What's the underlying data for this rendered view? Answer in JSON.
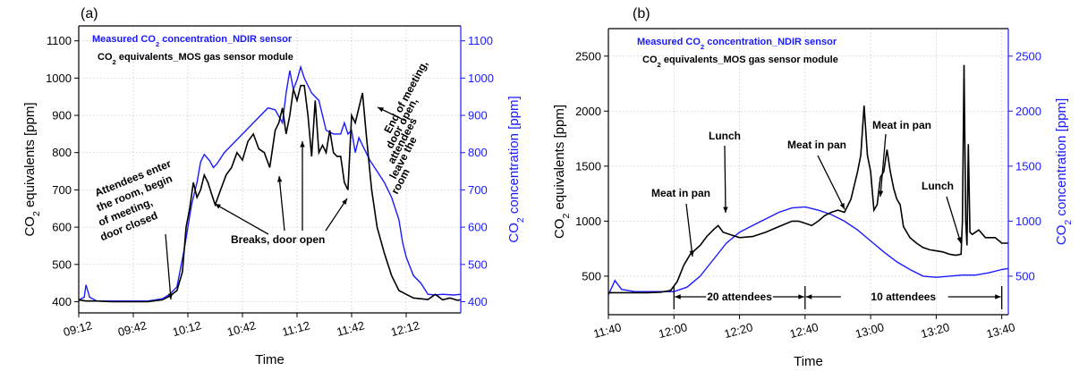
{
  "chart_data": [
    {
      "id": "a",
      "type": "line",
      "panel_label": "(a)",
      "xlabel": "Time",
      "ylabel": "CO2 equivalents [ppm]",
      "y2label": "CO2 concentration [ppm]",
      "grid": true,
      "legend_position": "top-left",
      "x_unit": "minutes of day",
      "xlim": [
        552,
        762
      ],
      "ylim": [
        370,
        1140
      ],
      "y2lim": [
        370,
        1140
      ],
      "x_ticks": [
        552,
        582,
        612,
        642,
        672,
        702,
        732
      ],
      "x_tick_labels": [
        "09:12",
        "09:42",
        "10:12",
        "10:42",
        "11:12",
        "11:42",
        "12:12"
      ],
      "y_ticks": [
        400,
        500,
        600,
        700,
        800,
        900,
        1000,
        1100
      ],
      "y_tick_labels": [
        "400",
        "500",
        "600",
        "700",
        "800",
        "900",
        "1000",
        "1100"
      ],
      "y2_ticks": [
        400,
        500,
        600,
        700,
        800,
        900,
        1000,
        1100
      ],
      "y2_tick_labels": [
        "400",
        "500",
        "600",
        "700",
        "800",
        "900",
        "1000",
        "1100"
      ],
      "series": [
        {
          "name": "Measured CO2 concentration_NDIR sensor",
          "color": "#1a1aff",
          "axis": "right",
          "x": [
            552,
            555,
            556,
            558,
            562,
            570,
            580,
            590,
            598,
            602,
            606,
            610,
            614,
            617,
            619,
            621,
            624,
            626,
            628,
            632,
            636,
            640,
            644,
            648,
            652,
            656,
            660,
            664,
            666,
            668,
            670,
            672,
            674,
            676,
            680,
            684,
            688,
            692,
            696,
            698,
            700,
            702,
            704,
            706,
            708,
            712,
            716,
            720,
            724,
            728,
            730,
            732,
            736,
            740,
            744,
            748,
            752,
            758,
            762
          ],
          "y": [
            405,
            412,
            445,
            412,
            402,
            402,
            402,
            402,
            408,
            420,
            440,
            540,
            660,
            720,
            775,
            795,
            778,
            760,
            770,
            800,
            820,
            840,
            860,
            880,
            900,
            920,
            915,
            880,
            960,
            1020,
            970,
            995,
            1030,
            1000,
            960,
            940,
            860,
            850,
            850,
            880,
            850,
            860,
            800,
            840,
            820,
            780,
            750,
            720,
            680,
            620,
            560,
            520,
            470,
            450,
            420,
            418,
            420,
            418,
            420
          ]
        },
        {
          "name": "CO2 equivalents_MOS gas sensor module",
          "color": "#000000",
          "axis": "left",
          "x": [
            552,
            556,
            562,
            570,
            580,
            590,
            598,
            602,
            606,
            609,
            611,
            613,
            615,
            617,
            619,
            621,
            623,
            625,
            627,
            630,
            633,
            636,
            639,
            642,
            645,
            648,
            651,
            654,
            657,
            660,
            662,
            664,
            666,
            668,
            670,
            672,
            674,
            676,
            678,
            680,
            682,
            684,
            686,
            688,
            690,
            692,
            694,
            696,
            698,
            700,
            702,
            704,
            706,
            708,
            710,
            713,
            716,
            720,
            724,
            728,
            732,
            736,
            740,
            744,
            748,
            752,
            756,
            760,
            762
          ],
          "y": [
            405,
            402,
            402,
            400,
            400,
            400,
            405,
            415,
            430,
            480,
            600,
            650,
            720,
            680,
            700,
            740,
            720,
            690,
            660,
            700,
            740,
            760,
            800,
            780,
            830,
            850,
            810,
            800,
            760,
            860,
            880,
            920,
            850,
            900,
            970,
            940,
            980,
            980,
            900,
            790,
            940,
            800,
            820,
            800,
            860,
            800,
            790,
            790,
            720,
            700,
            900,
            880,
            920,
            960,
            850,
            700,
            600,
            530,
            470,
            430,
            420,
            410,
            408,
            406,
            420,
            405,
            410,
            404,
            405
          ]
        }
      ],
      "annotations": [
        {
          "lines": [
            "Attendees enter",
            "the room, begin",
            "of meeting,",
            "door closed"
          ]
        },
        {
          "lines": [
            "Breaks, door open"
          ]
        },
        {
          "lines": [
            "End of meeting,",
            "door open,",
            "attendees",
            "leave the",
            "room"
          ]
        }
      ]
    },
    {
      "id": "b",
      "type": "line",
      "panel_label": "(b)",
      "xlabel": "Time",
      "ylabel": "CO2 equivalents [ppm]",
      "y2label": "CO2 concentration [ppm]",
      "grid": true,
      "legend_position": "top-left",
      "x_unit": "minutes of day",
      "xlim": [
        700,
        822
      ],
      "ylim": [
        150,
        2750
      ],
      "y2lim": [
        150,
        2750
      ],
      "x_ticks": [
        700,
        720,
        740,
        760,
        780,
        800,
        820
      ],
      "x_tick_labels": [
        "11:40",
        "12:00",
        "12:20",
        "12:40",
        "13:00",
        "13:20",
        "13:40"
      ],
      "y_ticks": [
        500,
        1000,
        1500,
        2000,
        2500
      ],
      "y_tick_labels": [
        "500",
        "1000",
        "1500",
        "2000",
        "2500"
      ],
      "y2_ticks": [
        500,
        1000,
        1500,
        2000,
        2500
      ],
      "y2_tick_labels": [
        "500",
        "1000",
        "1500",
        "2000",
        "2500"
      ],
      "series": [
        {
          "name": "Measured CO2 concentration_NDIR sensor",
          "color": "#1a1aff",
          "axis": "right",
          "x": [
            700,
            702,
            704,
            708,
            712,
            716,
            720,
            724,
            728,
            732,
            736,
            740,
            744,
            748,
            752,
            756,
            760,
            764,
            768,
            772,
            776,
            780,
            784,
            788,
            792,
            796,
            800,
            804,
            808,
            812,
            816,
            820,
            822
          ],
          "y": [
            330,
            460,
            380,
            360,
            360,
            360,
            360,
            400,
            500,
            650,
            800,
            900,
            960,
            1020,
            1080,
            1120,
            1130,
            1100,
            1060,
            1000,
            920,
            820,
            720,
            630,
            560,
            500,
            490,
            500,
            510,
            510,
            530,
            560,
            570
          ]
        },
        {
          "name": "CO2 equivalents_MOS gas sensor module",
          "color": "#000000",
          "axis": "left",
          "x": [
            700,
            704,
            708,
            712,
            716,
            719,
            721,
            723,
            725,
            728,
            730,
            732,
            733.5,
            735,
            737,
            740,
            744,
            748,
            752,
            756,
            758,
            760,
            762,
            764,
            766,
            768,
            770,
            772,
            774,
            776,
            777,
            778,
            779,
            780,
            781,
            782,
            783,
            784,
            785,
            786,
            787,
            788,
            789,
            790,
            792,
            794,
            796,
            798,
            800,
            802,
            804,
            806,
            807.6,
            808,
            808.5,
            809,
            809.4,
            809.8,
            810.3,
            811,
            813,
            815,
            818,
            820,
            822
          ],
          "y": [
            350,
            350,
            350,
            350,
            355,
            370,
            450,
            600,
            700,
            780,
            860,
            920,
            960,
            900,
            880,
            850,
            860,
            900,
            950,
            1000,
            1000,
            980,
            960,
            1000,
            1050,
            1080,
            1100,
            1080,
            1200,
            1450,
            1600,
            2050,
            1600,
            1450,
            1100,
            1150,
            1400,
            1450,
            1650,
            1450,
            1300,
            1200,
            1150,
            950,
            850,
            800,
            760,
            740,
            730,
            720,
            700,
            690,
            700,
            1000,
            2420,
            1000,
            780,
            1700,
            900,
            880,
            920,
            850,
            850,
            800,
            800
          ]
        }
      ],
      "annotations": [
        {
          "lines": [
            "Meat in pan"
          ]
        },
        {
          "lines": [
            "Lunch"
          ]
        },
        {
          "lines": [
            "Meat in pan"
          ]
        },
        {
          "lines": [
            "Meat in pan"
          ]
        },
        {
          "lines": [
            "Lunch"
          ]
        },
        {
          "lines": [
            "20 attendees"
          ]
        },
        {
          "lines": [
            "10 attendees"
          ]
        }
      ]
    }
  ]
}
